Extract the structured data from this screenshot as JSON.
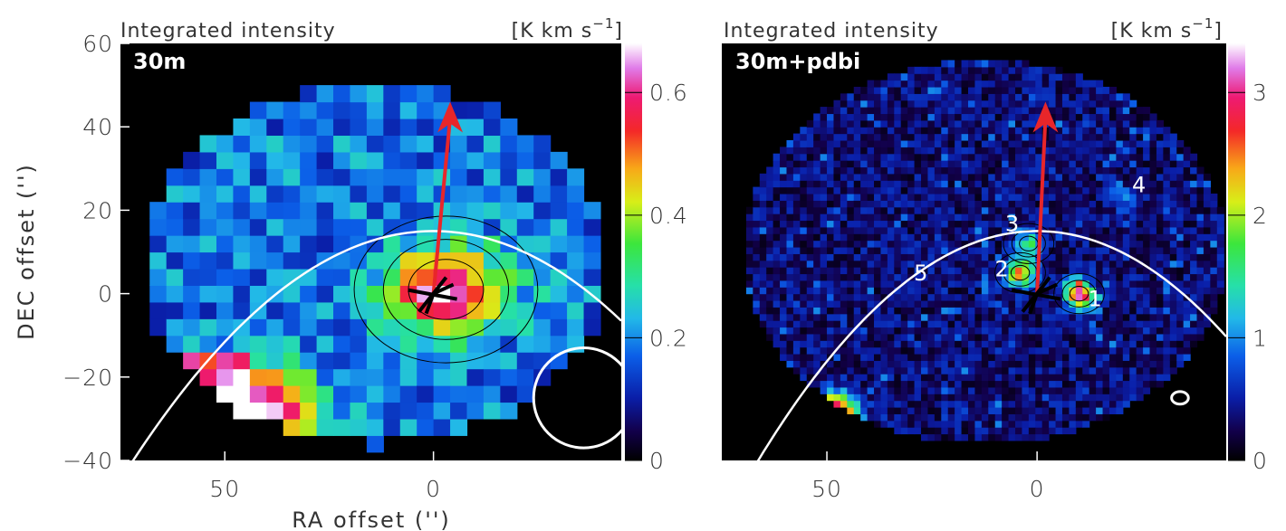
{
  "colors": {
    "background_mask": "#000000",
    "arrow": "#e8262a",
    "parabola": "#ffffff",
    "star": "#000000",
    "contour": "#000000"
  },
  "chart_data": [
    {
      "type": "heatmap",
      "panel_label": "30m",
      "header_left": "Integrated intensity",
      "header_unit": "[K km s",
      "header_unit_sup": "−1",
      "header_unit_close": "]",
      "xlabel": "RA offset ('')",
      "ylabel": "DEC offset ('')",
      "xlim": [
        75,
        -45
      ],
      "ylim": [
        -40,
        60
      ],
      "xticks": [
        {
          "value": 50,
          "label": "50"
        },
        {
          "value": 0,
          "label": "0"
        }
      ],
      "yticks": [
        {
          "value": 60,
          "label": "60"
        },
        {
          "value": 40,
          "label": "40"
        },
        {
          "value": 20,
          "label": "20"
        },
        {
          "value": 0,
          "label": "0"
        },
        {
          "value": -20,
          "label": "−20"
        },
        {
          "value": -40,
          "label": "−40"
        }
      ],
      "colorbar": {
        "range": [
          0,
          0.68
        ],
        "ticks": [
          {
            "value": 0,
            "label": "0"
          },
          {
            "value": 0.2,
            "label": "0.2"
          },
          {
            "value": 0.4,
            "label": "0.4"
          },
          {
            "value": 0.6,
            "label": "0.6"
          }
        ]
      },
      "map_extent": {
        "ra": [
          70,
          -42
        ],
        "dec": [
          -36,
          50
        ]
      },
      "peak": {
        "ra": -3,
        "dec": 1,
        "value": 0.66
      },
      "arrow": {
        "from": {
          "ra": 0,
          "dec": 0
        },
        "to": {
          "ra": -4,
          "dec": 46
        }
      },
      "beam": {
        "ra": -36,
        "dec": -25,
        "diameter_arcsec": 24
      },
      "grid": false
    },
    {
      "type": "heatmap",
      "panel_label": "30m+pdbi",
      "header_left": "Integrated intensity",
      "header_unit": "[K km s",
      "header_unit_sup": "−1",
      "header_unit_close": "]",
      "xlabel": "",
      "ylabel": "",
      "xlim": [
        75,
        -45
      ],
      "ylim": [
        -40,
        60
      ],
      "xticks": [
        {
          "value": 50,
          "label": "50"
        },
        {
          "value": 0,
          "label": "0"
        }
      ],
      "yticks": [],
      "colorbar": {
        "range": [
          0,
          3.4
        ],
        "ticks": [
          {
            "value": 0,
            "label": "0"
          },
          {
            "value": 1,
            "label": "1"
          },
          {
            "value": 2,
            "label": "2"
          },
          {
            "value": 3,
            "label": "3"
          }
        ]
      },
      "map_extent": {
        "ra": [
          70,
          -45
        ],
        "dec": [
          -36,
          56
        ]
      },
      "condensations": [
        {
          "label": "1",
          "ra": -10,
          "dec": 0,
          "value": 3.3
        },
        {
          "label": "2",
          "ra": 4,
          "dec": 5,
          "value": 2.6
        },
        {
          "label": "3",
          "ra": 2,
          "dec": 12,
          "value": 1.6
        },
        {
          "label": "4",
          "ra": -20,
          "dec": 23,
          "value": 0.9
        },
        {
          "label": "5",
          "ra": 28,
          "dec": 4,
          "value": 0.5
        }
      ],
      "arrow": {
        "from": {
          "ra": 0,
          "dec": 0
        },
        "to": {
          "ra": -2,
          "dec": 46
        }
      },
      "beam": {
        "ra": -34,
        "dec": -25,
        "major_arcsec": 4,
        "minor_arcsec": 3
      },
      "grid": false
    }
  ]
}
